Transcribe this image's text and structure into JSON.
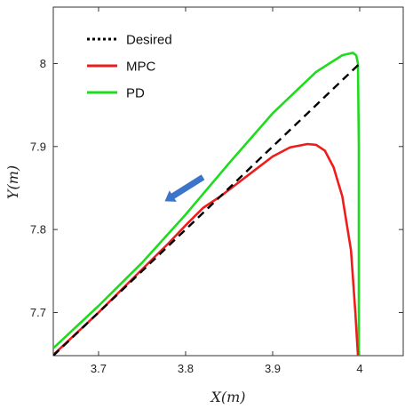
{
  "chart_data": {
    "type": "line",
    "title": "",
    "xlabel": "X(m)",
    "ylabel": "Y(m)",
    "xlim": [
      3.648,
      4.05
    ],
    "ylim": [
      7.648,
      8.068
    ],
    "xticks": [
      3.7,
      3.8,
      3.9,
      4.0
    ],
    "xtick_labels": [
      "3.7",
      "3.8",
      "3.9",
      "4"
    ],
    "yticks": [
      7.7,
      7.8,
      7.9,
      8.0
    ],
    "ytick_labels": [
      "7.7",
      "7.8",
      "7.9",
      "8"
    ],
    "grid": false,
    "legend_position": "top-left",
    "series": [
      {
        "name": "Desired",
        "color": "#000000",
        "style": "dashed",
        "x": [
          3.648,
          4.0
        ],
        "y": [
          7.648,
          8.0
        ]
      },
      {
        "name": "MPC",
        "color": "#ee1c1c",
        "style": "solid",
        "x": [
          3.648,
          3.7,
          3.75,
          3.78,
          3.8,
          3.82,
          3.84,
          3.86,
          3.88,
          3.9,
          3.92,
          3.94,
          3.95,
          3.96,
          3.97,
          3.98,
          3.99,
          3.995,
          3.998
        ],
        "y": [
          7.649,
          7.7,
          7.752,
          7.783,
          7.805,
          7.826,
          7.84,
          7.856,
          7.872,
          7.888,
          7.899,
          7.903,
          7.902,
          7.895,
          7.875,
          7.84,
          7.775,
          7.7,
          7.648
        ]
      },
      {
        "name": "PD",
        "color": "#1cdc1c",
        "style": "solid",
        "x": [
          3.648,
          3.7,
          3.75,
          3.8,
          3.85,
          3.9,
          3.95,
          3.98,
          3.992,
          3.996,
          3.998,
          3.999,
          3.999
        ],
        "y": [
          7.657,
          7.708,
          7.76,
          7.818,
          7.88,
          7.94,
          7.99,
          8.01,
          8.013,
          8.01,
          8.0,
          7.9,
          7.648
        ]
      }
    ],
    "annotations": [
      {
        "type": "arrow",
        "color": "#3b74c8",
        "from": [
          3.82,
          7.863
        ],
        "to": [
          3.776,
          7.834
        ]
      }
    ]
  }
}
